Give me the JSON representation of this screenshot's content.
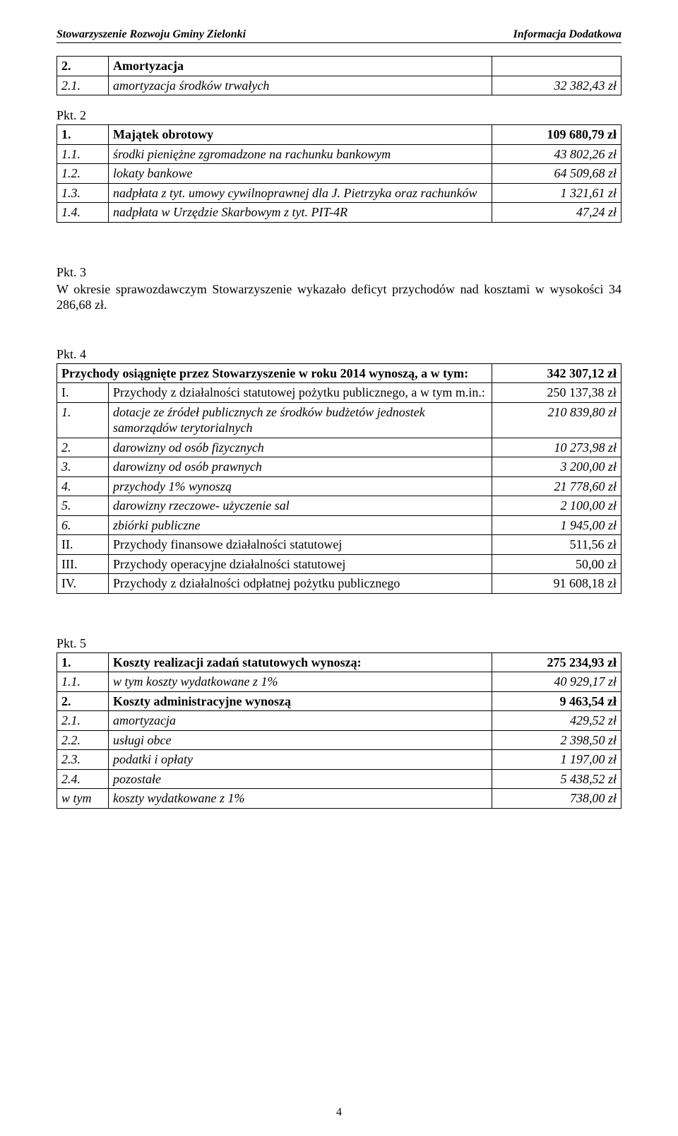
{
  "header": {
    "left": "Stowarzyszenie Rozwoju Gminy Zielonki",
    "right": "Informacja Dodatkowa"
  },
  "table_amort": {
    "rows": [
      {
        "n": "2.",
        "label": "Amortyzacja",
        "val": "",
        "bold": true,
        "italic": false
      },
      {
        "n": "2.1.",
        "label": "amortyzacja środków trwałych",
        "val": "32 382,43 zł",
        "bold": false,
        "italic": true
      }
    ]
  },
  "pkt2_label": "Pkt. 2",
  "table_pkt2": {
    "rows": [
      {
        "n": "1.",
        "label": "Majątek obrotowy",
        "val": "109 680,79 zł",
        "bold": true,
        "italic": false
      },
      {
        "n": "1.1.",
        "label": "środki pieniężne zgromadzone na rachunku bankowym",
        "val": "43 802,26 zł",
        "bold": false,
        "italic": true
      },
      {
        "n": "1.2.",
        "label": "lokaty bankowe",
        "val": "64 509,68 zł",
        "bold": false,
        "italic": true
      },
      {
        "n": "1.3.",
        "label": "nadpłata z tyt. umowy cywilnoprawnej dla J. Pietrzyka oraz rachunków",
        "val": "1 321,61 zł",
        "bold": false,
        "italic": true
      },
      {
        "n": "1.4.",
        "label": "nadpłata w Urzędzie Skarbowym z tyt. PIT-4R",
        "val": "47,24  zł",
        "bold": false,
        "italic": true
      }
    ]
  },
  "pkt3": {
    "label": "Pkt. 3",
    "text": "W okresie sprawozdawczym Stowarzyszenie wykazało deficyt przychodów nad kosztami w wysokości 34 286,68 zł."
  },
  "pkt4_label": "Pkt. 4",
  "table_pkt4": {
    "rows": [
      {
        "n": "",
        "label": "Przychody osiągnięte przez Stowarzyszenie w roku 2014 wynoszą, a w tym:",
        "val": "342 307,12 zł",
        "bold": true,
        "italic": false,
        "span": true
      },
      {
        "n": "I.",
        "label": "Przychody z działalności statutowej pożytku publicznego, a w tym m.in.:",
        "val": "250 137,38 zł",
        "bold": false,
        "italic": false
      },
      {
        "n": "1.",
        "label": "dotacje ze źródeł publicznych ze środków budżetów jednostek samorządów terytorialnych",
        "val": "210 839,80 zł",
        "bold": false,
        "italic": true
      },
      {
        "n": "2.",
        "label": "darowizny od osób fizycznych",
        "val": "10 273,98 zł",
        "bold": false,
        "italic": true
      },
      {
        "n": "3.",
        "label": "darowizny od osób prawnych",
        "val": "3 200,00 zł",
        "bold": false,
        "italic": true
      },
      {
        "n": "4.",
        "label": "przychody 1% wynoszą",
        "val": "21 778,60 zł",
        "bold": false,
        "italic": true
      },
      {
        "n": "5.",
        "label": "darowizny rzeczowe- użyczenie sal",
        "val": "2 100,00 zł",
        "bold": false,
        "italic": true
      },
      {
        "n": "6.",
        "label": "zbiórki publiczne",
        "val": "1 945,00 zł",
        "bold": false,
        "italic": true
      },
      {
        "n": "II.",
        "label": "Przychody finansowe działalności statutowej",
        "val": "511,56 zł",
        "bold": false,
        "italic": false
      },
      {
        "n": "III.",
        "label": "Przychody operacyjne działalności statutowej",
        "val": "50,00 zł",
        "bold": false,
        "italic": false
      },
      {
        "n": "IV.",
        "label": "Przychody z działalności odpłatnej pożytku publicznego",
        "val": "91 608,18 zł",
        "bold": false,
        "italic": false
      }
    ]
  },
  "pkt5_label": "Pkt. 5",
  "table_pkt5": {
    "rows": [
      {
        "n": "1.",
        "label": "Koszty realizacji zadań statutowych wynoszą:",
        "val": "275 234,93 zł",
        "bold": true,
        "italic": false
      },
      {
        "n": "1.1.",
        "label": "w tym koszty wydatkowane z 1%",
        "val": "40 929,17 zł",
        "bold": false,
        "italic": true
      },
      {
        "n": "2.",
        "label": "Koszty administracyjne wynoszą",
        "val": "9 463,54 zł",
        "bold": true,
        "italic": false
      },
      {
        "n": "2.1.",
        "label": "amortyzacja",
        "val": "429,52 zł",
        "bold": false,
        "italic": true
      },
      {
        "n": "2.2.",
        "label": "usługi obce",
        "val": "2 398,50 zł",
        "bold": false,
        "italic": true
      },
      {
        "n": "2.3.",
        "label": "podatki i opłaty",
        "val": "1 197,00 zł",
        "bold": false,
        "italic": true
      },
      {
        "n": "2.4.",
        "label": "pozostałe",
        "val": "5 438,52 zł",
        "bold": false,
        "italic": true
      },
      {
        "n": "w tym",
        "label": "koszty wydatkowane z 1%",
        "val": "738,00 zł",
        "bold": false,
        "italic": true
      }
    ]
  },
  "page_number": "4"
}
